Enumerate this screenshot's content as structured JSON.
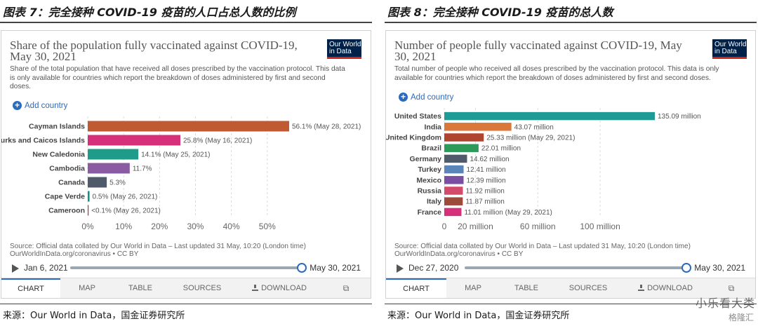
{
  "panel1": {
    "fig_title": "图表 7：完全接种 COVID-19 疫苗的人口占总人数的比例",
    "chart_title": "Share of the population fully vaccinated against COVID-19, May 30, 2021",
    "subtitle": "Share of the total population that have received all doses prescribed by the vaccination protocol. This data is only available for countries which report the breakdown of doses administered by first and second doses.",
    "logo": "Our World in Data",
    "add_country": "Add country",
    "source": "Source: Official data collated by Our World in Data – Last updated 31 May, 10:20 (London time)\nOurWorldInData.org/coronavirus • CC BY",
    "timeline": {
      "start": "Jan 6, 2021",
      "end": "May 30, 2021",
      "progress": 1.0
    },
    "tabs": [
      "CHART",
      "MAP",
      "TABLE",
      "SOURCES",
      "DOWNLOAD"
    ],
    "source_note": "来源：Our World in Data，国金证券研究所"
  },
  "panel2": {
    "fig_title": "图表 8：完全接种 COVID-19 疫苗的总人数",
    "chart_title": "Number of people fully vaccinated against COVID-19, May 30, 2021",
    "subtitle": "Total number of people who received all doses prescribed by the vaccination protocol. This data is only available for countries which report the breakdown of doses administered by first and second doses.",
    "logo": "Our World in Data",
    "add_country": "Add country",
    "source": "Source: Official data collated by Our World in Data – Last updated 31 May, 10:20 (London time)\nOurWorldInData.org/coronavirus • CC BY",
    "timeline": {
      "start": "Dec 27, 2020",
      "end": "May 30, 2021",
      "progress": 1.0
    },
    "tabs": [
      "CHART",
      "MAP",
      "TABLE",
      "SOURCES",
      "DOWNLOAD"
    ],
    "source_note": "来源：Our World in Data，国金证券研究所"
  },
  "watermark": "小乐看大类",
  "watermark2": "格隆汇",
  "chart_data": [
    {
      "type": "bar",
      "orientation": "horizontal",
      "title": "Share of the population fully vaccinated against COVID-19, May 30, 2021",
      "categories": [
        "Cayman Islands",
        "Turks and Caicos Islands",
        "New Caledonia",
        "Cambodia",
        "Canada",
        "Cape Verde",
        "Cameroon"
      ],
      "values": [
        56.1,
        25.8,
        14.1,
        11.7,
        5.3,
        0.5,
        0.05
      ],
      "labels": [
        "56.1% (May 28, 2021)",
        "25.8% (May 16, 2021)",
        "14.1% (May 25, 2021)",
        "11.7%",
        "5.3%",
        "0.5% (May 26, 2021)",
        "<0.1% (May 26, 2021)"
      ],
      "colors": [
        "#c05a33",
        "#d6307a",
        "#1f9b8a",
        "#8a5ba3",
        "#4f5b6b",
        "#0f9488",
        "#b8343f"
      ],
      "xticks": [
        0,
        10,
        20,
        30,
        40,
        50
      ],
      "xtick_labels": [
        "0%",
        "10%",
        "20%",
        "30%",
        "40%",
        "50%"
      ],
      "xlim": [
        0,
        56.1
      ],
      "grid": true
    },
    {
      "type": "bar",
      "orientation": "horizontal",
      "title": "Number of people fully vaccinated against COVID-19, May 30, 2021",
      "categories": [
        "United States",
        "India",
        "United Kingdom",
        "Brazil",
        "Germany",
        "Turkey",
        "Mexico",
        "Russia",
        "Italy",
        "France"
      ],
      "values": [
        135.09,
        43.07,
        25.33,
        22.01,
        14.62,
        12.41,
        12.39,
        11.92,
        11.87,
        11.01
      ],
      "labels": [
        "135.09 million",
        "43.07 million",
        "25.33 million (May 29, 2021)",
        "22.01 million",
        "14.62 million",
        "12.41 million",
        "12.39 million",
        "11.92 million",
        "11.87 million",
        "11.01 million (May 29, 2021)"
      ],
      "colors": [
        "#1f9b96",
        "#d9783a",
        "#b0452f",
        "#2e9a5a",
        "#4f5b6b",
        "#5b84b8",
        "#7a4ea3",
        "#d44a6a",
        "#9c4a3a",
        "#d6307a"
      ],
      "xticks": [
        0,
        20,
        60,
        100
      ],
      "xtick_labels": [
        "0",
        "20 million",
        "60 million",
        "100 million"
      ],
      "xlim": [
        0,
        135.09
      ],
      "grid": true
    }
  ]
}
